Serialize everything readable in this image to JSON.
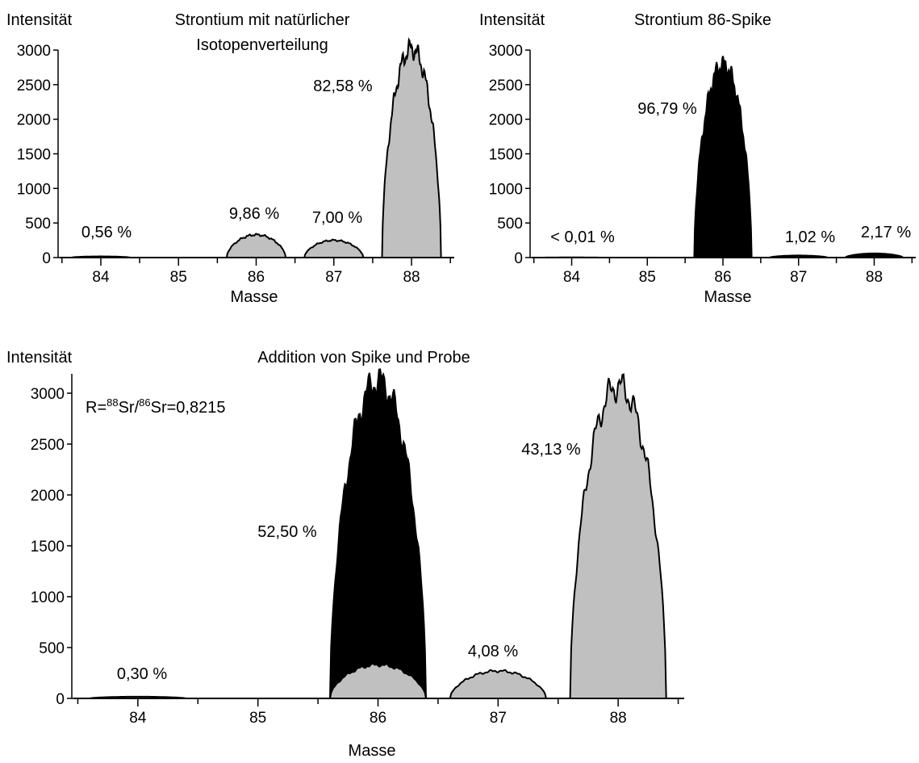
{
  "colors": {
    "natural": "#c0c0c0",
    "spike": "#000000",
    "outline": "#000000"
  },
  "chart_data": [
    {
      "type": "area",
      "id": "natural",
      "title_lines": [
        "Strontium mit natürlicher",
        "Isotopenverteilung"
      ],
      "ylabel": "Intensität",
      "xlabel": "Masse",
      "xlim": [
        83.45,
        88.55
      ],
      "ylim": [
        0,
        3100
      ],
      "xticks": [
        84,
        85,
        86,
        87,
        88
      ],
      "yticks": [
        0,
        500,
        1000,
        1500,
        2000,
        2500,
        3000
      ],
      "series": [
        {
          "kind": "natural",
          "peaks": [
            {
              "mass": 84,
              "intensity": 17
            },
            {
              "mass": 86,
              "intensity": 330
            },
            {
              "mass": 87,
              "intensity": 250
            },
            {
              "mass": 88,
              "intensity": 3020
            }
          ]
        }
      ],
      "annotations": [
        {
          "text": "0,56 %",
          "mass": 84
        },
        {
          "text": "9,86 %",
          "mass": 86
        },
        {
          "text": "7,00 %",
          "mass": 87
        },
        {
          "text": "82,58 %",
          "mass": 88
        }
      ]
    },
    {
      "type": "area",
      "id": "spike",
      "title_lines": [
        "Strontium 86-Spike"
      ],
      "ylabel": "Intensität",
      "xlabel": "Masse",
      "xlim": [
        83.45,
        88.55
      ],
      "ylim": [
        0,
        3100
      ],
      "xticks": [
        84,
        85,
        86,
        87,
        88
      ],
      "yticks": [
        0,
        500,
        1000,
        1500,
        2000,
        2500,
        3000
      ],
      "series": [
        {
          "kind": "spike",
          "peaks": [
            {
              "mass": 84,
              "intensity": 2
            },
            {
              "mass": 86,
              "intensity": 2790
            },
            {
              "mass": 87,
              "intensity": 30
            },
            {
              "mass": 88,
              "intensity": 60
            }
          ]
        }
      ],
      "annotations": [
        {
          "text": "< 0,01 %",
          "mass": 84
        },
        {
          "text": "96,79 %",
          "mass": 86
        },
        {
          "text": "1,02 %",
          "mass": 87
        },
        {
          "text": "2,17 %",
          "mass": 88
        }
      ]
    },
    {
      "type": "area",
      "id": "mixture",
      "title_lines": [
        "Addition von Spike und Probe"
      ],
      "ylabel": "Intensität",
      "xlabel": "Masse",
      "xlim": [
        83.45,
        88.55
      ],
      "ylim": [
        0,
        3150
      ],
      "xticks": [
        84,
        85,
        86,
        87,
        88
      ],
      "yticks": [
        0,
        500,
        1000,
        1500,
        2000,
        2500,
        3000
      ],
      "ratio": {
        "prefix": "R=",
        "sup1": "88",
        "mid": "Sr/",
        "sup2": "86",
        "suffix": "Sr=0,8215"
      },
      "series": [
        {
          "kind": "spike",
          "peaks": [
            {
              "mass": 86,
              "intensity": 3120
            }
          ]
        },
        {
          "kind": "natural",
          "peaks": [
            {
              "mass": 84,
              "intensity": 17
            },
            {
              "mass": 86,
              "intensity": 330
            },
            {
              "mass": 87,
              "intensity": 270
            },
            {
              "mass": 88,
              "intensity": 3070
            }
          ]
        }
      ],
      "annotations": [
        {
          "text": "0,30 %",
          "mass": 84
        },
        {
          "text": "52,50 %",
          "mass": 86
        },
        {
          "text": "4,08 %",
          "mass": 87
        },
        {
          "text": "43,13 %",
          "mass": 88
        }
      ]
    }
  ]
}
